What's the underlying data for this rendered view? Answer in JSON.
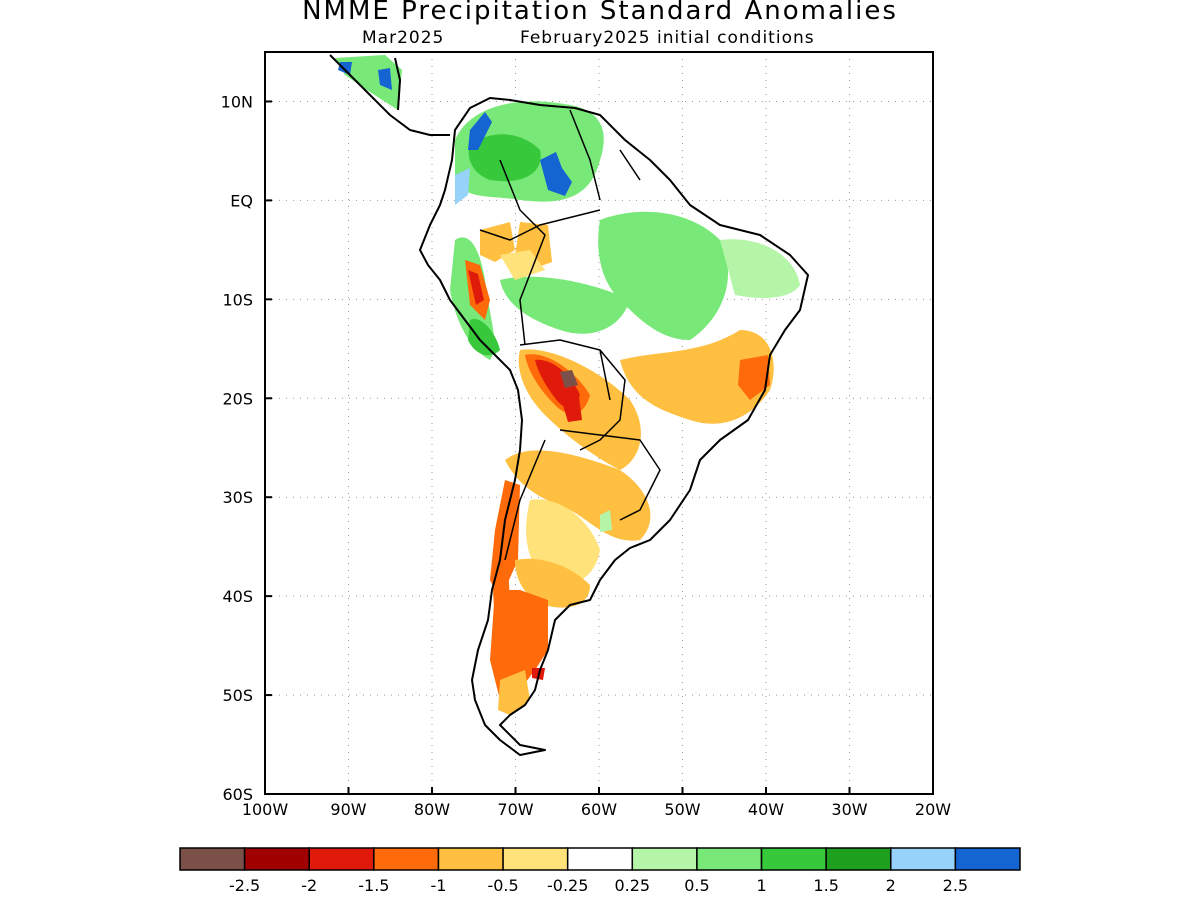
{
  "title": "NMME Precipitation Standard Anomalies",
  "subtitle_left": "Mar2025",
  "subtitle_right": "February2025 initial conditions",
  "map": {
    "lon_range": [
      -100,
      -20
    ],
    "lat_range": [
      -60,
      15
    ],
    "lon_ticks": [
      "100W",
      "90W",
      "80W",
      "70W",
      "60W",
      "50W",
      "40W",
      "30W",
      "20W"
    ],
    "lat_ticks": [
      "10N",
      "EQ",
      "10S",
      "20S",
      "30S",
      "40S",
      "50S",
      "60S"
    ],
    "grid": "dotted"
  },
  "colorbar": {
    "colors": [
      "#7a5048",
      "#a00000",
      "#e01a0a",
      "#ff6a0a",
      "#ffbf40",
      "#ffe27a",
      "#ffffff",
      "#b4f5a8",
      "#78e878",
      "#38c83c",
      "#1ea01e",
      "#96d2fa",
      "#1464d2"
    ],
    "labels": [
      "-2.5",
      "-2",
      "-1.5",
      "-1",
      "-0.5",
      "-0.25",
      "0.25",
      "0.5",
      "1",
      "1.5",
      "2",
      "2.5"
    ]
  }
}
